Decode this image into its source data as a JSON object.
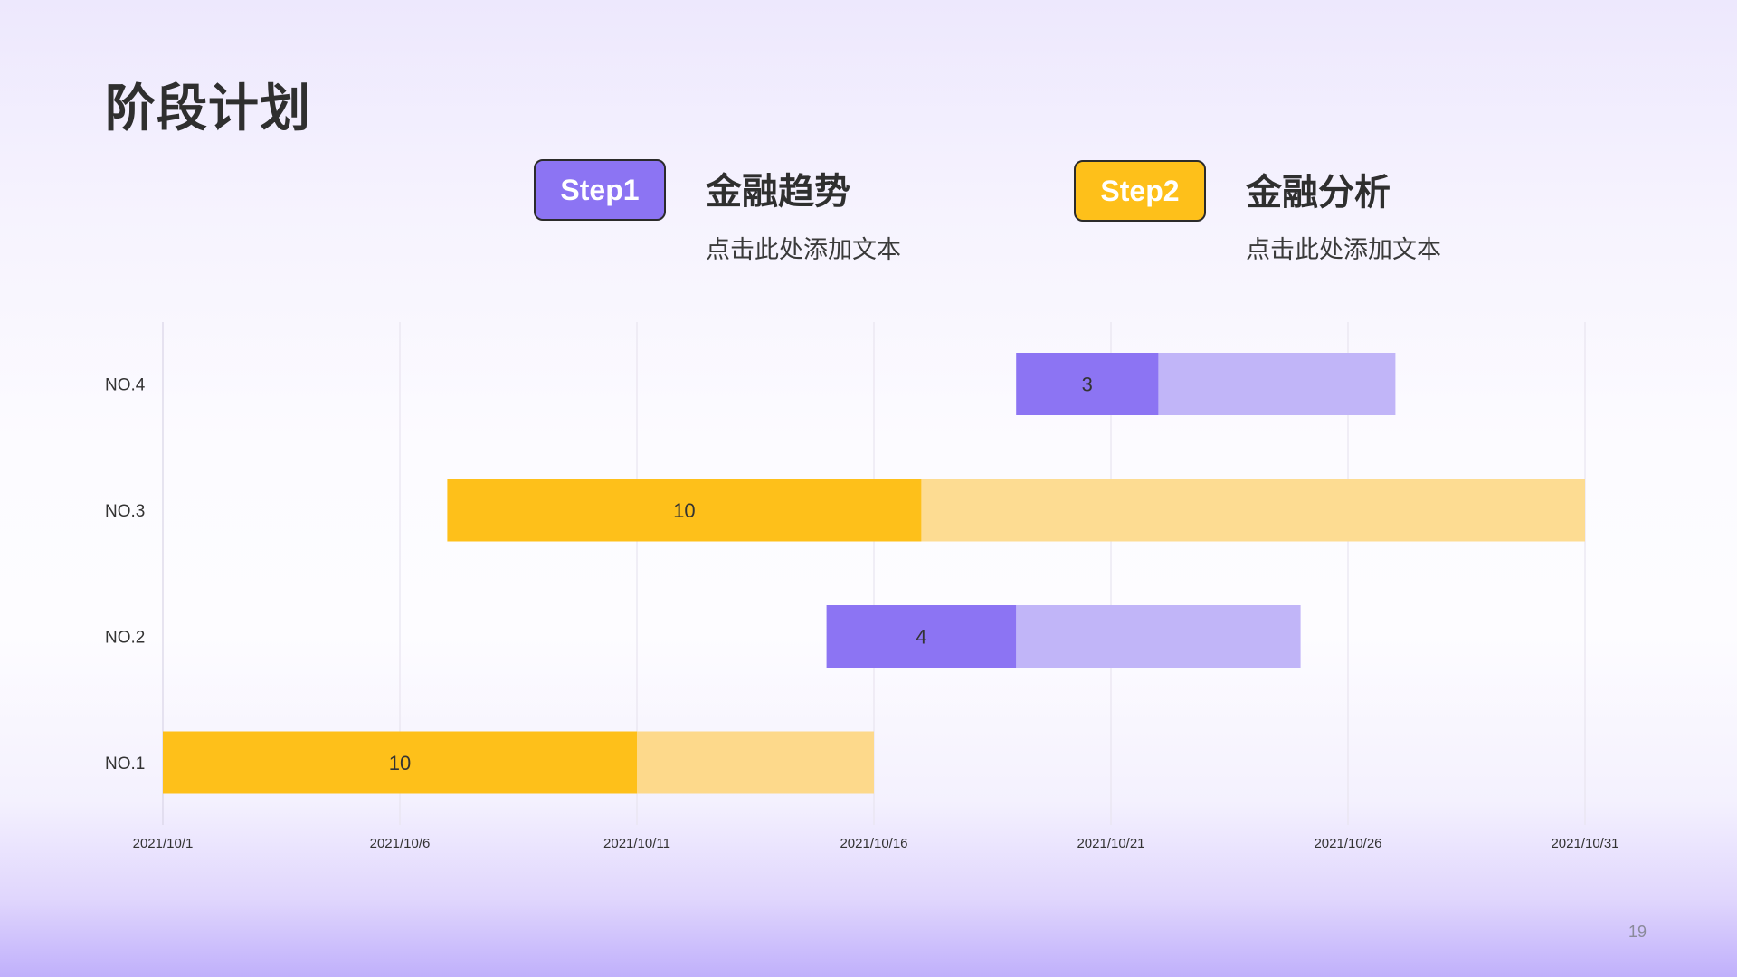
{
  "page": {
    "title": "阶段计划",
    "page_number": "19"
  },
  "steps": [
    {
      "badge": "Step1",
      "title": "金融趋势",
      "description": "点击此处添加文本",
      "color": "#8c74f3"
    },
    {
      "badge": "Step2",
      "title": "金融分析",
      "description": "点击此处添加文本",
      "color": "#fec01a"
    }
  ],
  "chart_data": {
    "type": "bar",
    "orientation": "horizontal",
    "stacked": true,
    "title": "",
    "xlabel": "",
    "ylabel": "",
    "x_axis": {
      "start": "2021/10/1",
      "end": "2021/10/31",
      "tick_labels": [
        "2021/10/1",
        "2021/10/6",
        "2021/10/11",
        "2021/10/16",
        "2021/10/21",
        "2021/10/26",
        "2021/10/31"
      ]
    },
    "grid": true,
    "categories": [
      "NO.1",
      "NO.2",
      "NO.3",
      "NO.4"
    ],
    "tasks": [
      {
        "category": "NO.1",
        "start": "2021/10/1",
        "done_days": 10,
        "remaining_days": 5,
        "end": "2021/10/16",
        "label": "10",
        "color": "#fec01a",
        "remaining_color": "#fdd98b"
      },
      {
        "category": "NO.2",
        "start": "2021/10/15",
        "done_days": 4,
        "remaining_days": 6,
        "end": "2021/10/25",
        "label": "4",
        "color": "#8c74f3",
        "remaining_color": "#c1b5f8"
      },
      {
        "category": "NO.3",
        "start": "2021/10/7",
        "done_days": 10,
        "remaining_days": 14,
        "end": "2021/10/31",
        "label": "10",
        "color": "#fec01a",
        "remaining_color": "#fddc92"
      },
      {
        "category": "NO.4",
        "start": "2021/10/19",
        "done_days": 3,
        "remaining_days": 5,
        "end": "2021/10/27",
        "label": "3",
        "color": "#8c74f3",
        "remaining_color": "#c1b5f8"
      }
    ]
  }
}
